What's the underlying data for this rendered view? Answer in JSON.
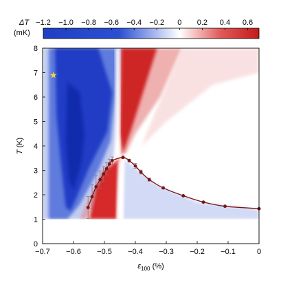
{
  "chart_data": {
    "type": "heatmap",
    "colorbar": {
      "label_line1": "ΔT",
      "label_line2": "(mK)",
      "ticks": [
        "−1.2",
        "−1.0",
        "−0.8",
        "−0.6",
        "−0.4",
        "−0.2",
        "0",
        "0.2",
        "0.4",
        "0.6"
      ],
      "tick_values": [
        -1.2,
        -1.0,
        -0.8,
        -0.6,
        -0.4,
        -0.2,
        0,
        0.2,
        0.4,
        0.6
      ],
      "range": [
        -1.2,
        0.7
      ],
      "colors": {
        "negative": "#1f3fc4",
        "zero": "#ffffff",
        "positive": "#cc1c1c"
      }
    },
    "xlabel": "ε100 (%)",
    "xlabel_main": "ε",
    "xlabel_sub": "100",
    "xlabel_unit": " (%)",
    "ylabel": "T (K)",
    "ylabel_italic": "T",
    "ylabel_unit": " (K)",
    "xlim": [
      -0.7,
      0.0
    ],
    "ylim": [
      0,
      8
    ],
    "x_ticks": [
      "−0.7",
      "−0.6",
      "−0.5",
      "−0.4",
      "−0.3",
      "−0.2",
      "−0.1",
      "0"
    ],
    "x_tick_values": [
      -0.7,
      -0.6,
      -0.5,
      -0.4,
      -0.3,
      -0.2,
      -0.1,
      0.0
    ],
    "y_ticks": [
      "0",
      "1",
      "2",
      "3",
      "4",
      "5",
      "6",
      "7",
      "8"
    ],
    "y_tick_values": [
      0,
      1,
      2,
      3,
      4,
      5,
      6,
      7,
      8
    ],
    "heatmap_extent": {
      "x": [
        -0.7,
        0.0
      ],
      "y": [
        1,
        8
      ]
    },
    "star": {
      "x": -0.665,
      "y": 6.9,
      "color": "#f2d733"
    },
    "transition_line": {
      "color": "#7a1414",
      "points": [
        {
          "x": -0.553,
          "y": 1.48,
          "err": 0.45
        },
        {
          "x": -0.54,
          "y": 1.92,
          "err": 0.5
        },
        {
          "x": -0.527,
          "y": 2.33,
          "err": 0.45
        },
        {
          "x": -0.514,
          "y": 2.62,
          "err": 0.35
        },
        {
          "x": -0.503,
          "y": 2.85,
          "err": 0.3
        },
        {
          "x": -0.493,
          "y": 3.07,
          "err": 0.25
        },
        {
          "x": -0.484,
          "y": 3.26,
          "err": 0.2
        },
        {
          "x": -0.475,
          "y": 3.4,
          "err": 0.15
        },
        {
          "x": -0.44,
          "y": 3.53,
          "err": 0.05
        },
        {
          "x": -0.42,
          "y": 3.4,
          "err": 0.06
        },
        {
          "x": -0.4,
          "y": 3.18,
          "err": 0.1
        },
        {
          "x": -0.382,
          "y": 2.93,
          "err": 0.08
        },
        {
          "x": -0.355,
          "y": 2.62,
          "err": 0.06
        },
        {
          "x": -0.31,
          "y": 2.28,
          "err": 0.04
        },
        {
          "x": -0.245,
          "y": 1.96,
          "err": 0.03
        },
        {
          "x": -0.18,
          "y": 1.7,
          "err": 0.03
        },
        {
          "x": -0.11,
          "y": 1.53,
          "err": 0.02
        },
        {
          "x": 0.0,
          "y": 1.43,
          "err": 0.02
        }
      ]
    }
  }
}
